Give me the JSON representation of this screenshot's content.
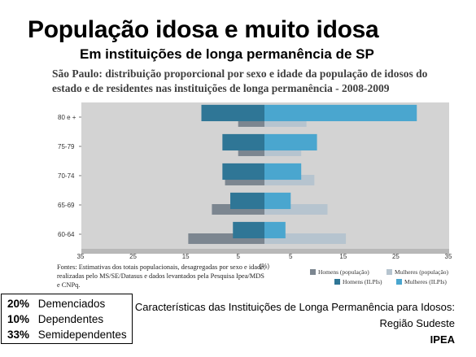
{
  "slide": {
    "title": "População idosa e muito idosa",
    "subtitle": "Em instituições de longa permanência de SP",
    "caption": "São Paulo: distribuição proporcional por sexo e idade da população de idosos do estado e de residentes nas instituições de longa permanência  - 2008-2009",
    "sources_note": "Fontes: Estimativas dos totais populacionais, desagregadas por sexo e idade, realizadas pelo MS/SE/Datasus e dados levantados pela Pesquisa Ipea/MDS e CNPq.",
    "stats": [
      {
        "pct": "20%",
        "label": "Demenciados"
      },
      {
        "pct": "10%",
        "label": "Dependentes"
      },
      {
        "pct": "33%",
        "label": "Semidependentes"
      }
    ],
    "source_line1": "Características das Instituições de Longa Permanência para Idosos:",
    "source_line2": "Região Sudeste",
    "source_line3": "IPEA"
  },
  "colors": {
    "men_population": "#7c8690",
    "women_population": "#b6c4cf",
    "men_ilpi": "#2f7696",
    "women_ilpi": "#4aa6cf",
    "panel": "#d3d3d3",
    "axis_band": "#b8b8b8"
  },
  "chart_data": {
    "type": "bar",
    "orientation": "horizontal-pyramid",
    "categories": [
      "80 e +",
      "75-79",
      "70-74",
      "65-69",
      "60-64"
    ],
    "series": [
      {
        "name": "Homens (população)",
        "side": "left",
        "values": [
          5,
          5,
          7.5,
          10,
          14.5
        ]
      },
      {
        "name": "Mulheres (população)",
        "side": "right",
        "values": [
          8,
          7,
          9.5,
          12,
          15.5
        ]
      },
      {
        "name": "Homens (ILPIs)",
        "side": "left",
        "values": [
          12,
          8,
          8,
          6.5,
          6
        ]
      },
      {
        "name": "Mulheres (ILPIs)",
        "side": "right",
        "values": [
          29,
          10,
          7,
          5,
          4
        ]
      }
    ],
    "xlim": [
      -35,
      35
    ],
    "x_ticks": [
      "35",
      "25",
      "15",
      "5",
      "5",
      "15",
      "25",
      "35"
    ],
    "xlabel": "(%)",
    "legend_position": "bottom-right"
  }
}
